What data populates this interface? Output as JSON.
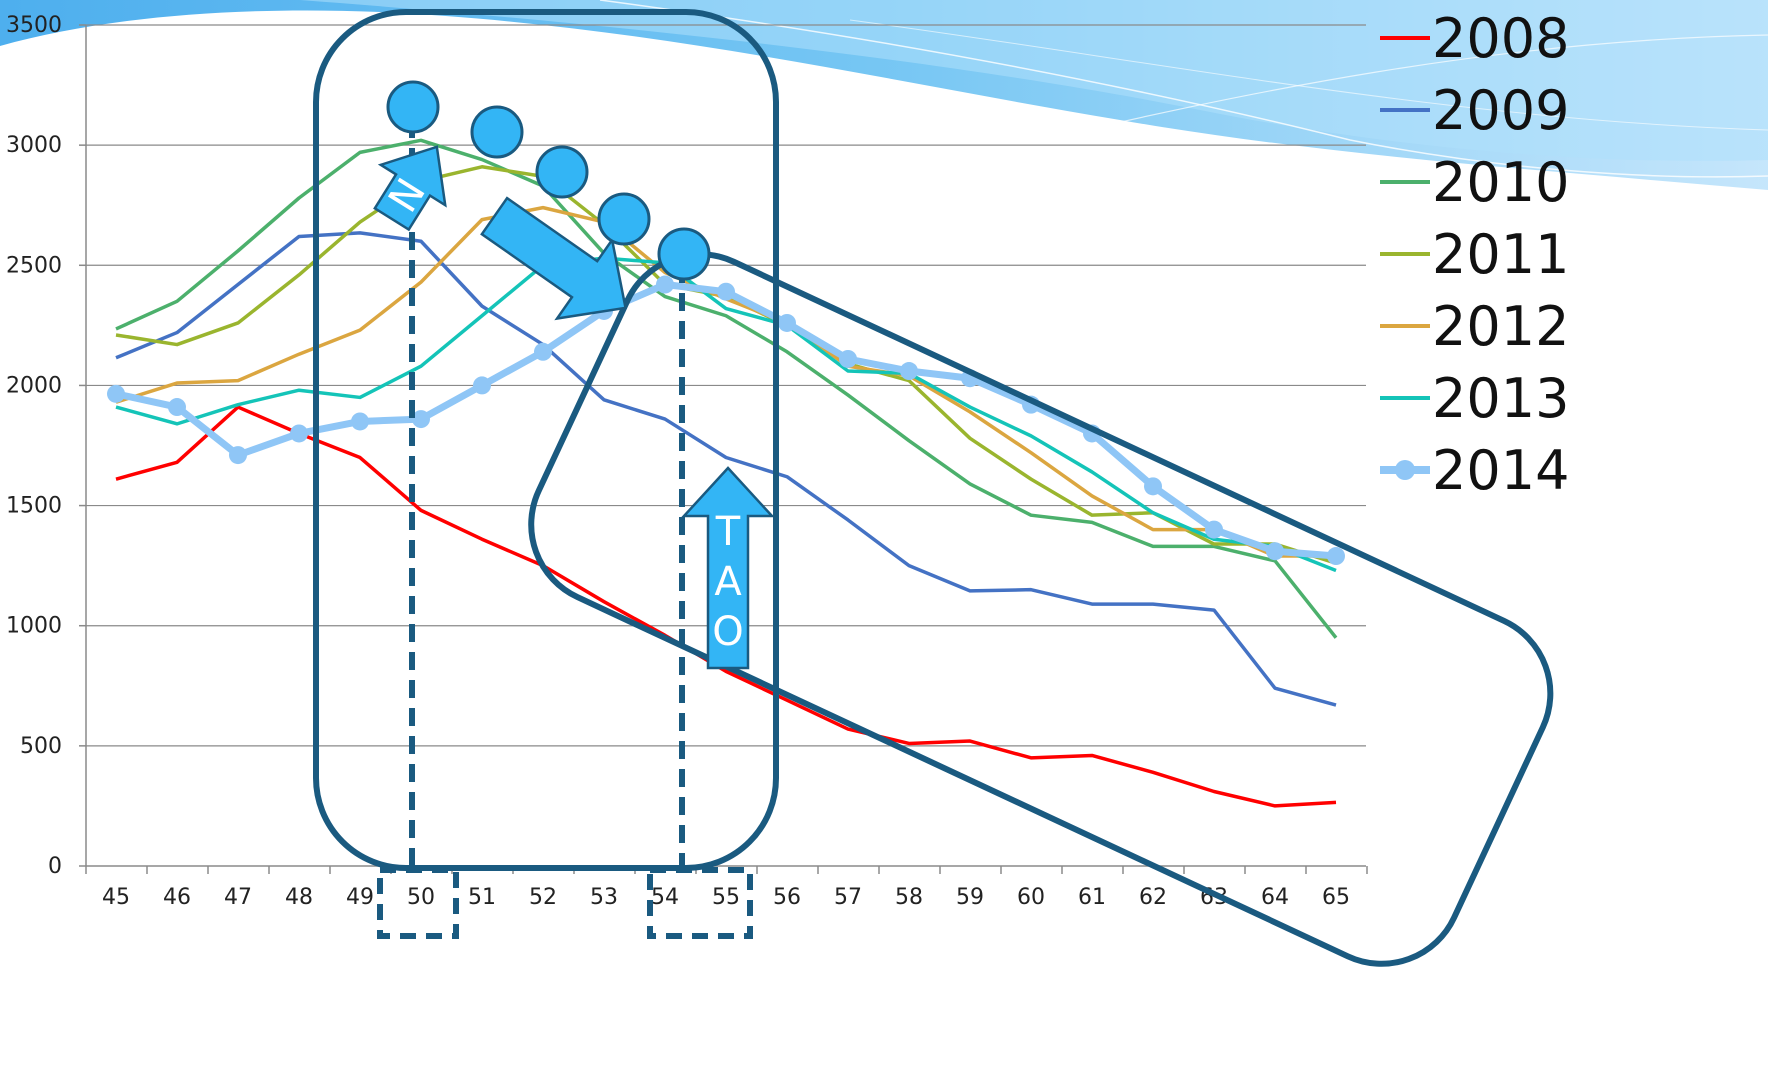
{
  "chart_data": {
    "type": "line",
    "x": [
      45,
      46,
      47,
      48,
      49,
      50,
      51,
      52,
      53,
      54,
      55,
      56,
      57,
      58,
      59,
      60,
      61,
      62,
      63,
      64,
      65
    ],
    "ylim": [
      0,
      3500
    ],
    "yticks": [
      0,
      500,
      1000,
      1500,
      2000,
      2500,
      3000,
      3500
    ],
    "xticks": [
      "45",
      "46",
      "47",
      "48",
      "49",
      "50",
      "51",
      "52",
      "53",
      "54",
      "55",
      "56",
      "57",
      "58",
      "59",
      "60",
      "61",
      "62",
      "63",
      "64",
      "65"
    ],
    "grid": true,
    "legend_position": "right",
    "series": [
      {
        "name": "2008",
        "color": "#ff0000",
        "markers": false,
        "values": [
          1610,
          1680,
          1910,
          1800,
          1700,
          1480,
          1360,
          1250,
          1100,
          960,
          810,
          690,
          570,
          510,
          520,
          450,
          460,
          390,
          310,
          250,
          265
        ]
      },
      {
        "name": "2009",
        "color": "#4472c4",
        "markers": false,
        "values": [
          2115,
          2220,
          2420,
          2620,
          2635,
          2600,
          2330,
          2170,
          1940,
          1860,
          1700,
          1620,
          1440,
          1250,
          1145,
          1150,
          1090,
          1090,
          1065,
          740,
          670
        ]
      },
      {
        "name": "2010",
        "color": "#4cb06c",
        "markers": false,
        "values": [
          2235,
          2350,
          2560,
          2780,
          2970,
          3020,
          2940,
          2830,
          2550,
          2370,
          2290,
          2140,
          1960,
          1770,
          1590,
          1460,
          1430,
          1330,
          1330,
          1270,
          950
        ]
      },
      {
        "name": "2011",
        "color": "#9ab52e",
        "markers": false,
        "values": [
          2210,
          2170,
          2260,
          2460,
          2680,
          2850,
          2910,
          2870,
          2670,
          2420,
          2370,
          2250,
          2090,
          2020,
          1780,
          1610,
          1460,
          1470,
          1340,
          1340,
          1260
        ]
      },
      {
        "name": "2012",
        "color": "#dba640",
        "markers": false,
        "values": [
          1930,
          2010,
          2020,
          2130,
          2230,
          2430,
          2690,
          2740,
          2680,
          2470,
          2360,
          2260,
          2080,
          2040,
          1890,
          1720,
          1540,
          1400,
          1400,
          1290,
          1290
        ]
      },
      {
        "name": "2013",
        "color": "#14c4b8",
        "markers": false,
        "values": [
          1910,
          1840,
          1920,
          1980,
          1950,
          2080,
          2290,
          2500,
          2530,
          2510,
          2320,
          2250,
          2060,
          2050,
          1910,
          1790,
          1640,
          1470,
          1360,
          1330,
          1230
        ]
      },
      {
        "name": "2014",
        "color": "#8fc6f6",
        "markers": true,
        "values": [
          1965,
          1910,
          1710,
          1800,
          1850,
          1860,
          2000,
          2140,
          2310,
          2420,
          2390,
          2260,
          2110,
          2060,
          2030,
          1920,
          1800,
          1580,
          1400,
          1310,
          1290
        ]
      }
    ]
  },
  "annotations": {
    "up_arrow_label": "N",
    "tao_arrow_label": "TAO",
    "tao_letters": [
      "T",
      "A",
      "O"
    ],
    "highlighted_x": [
      "50",
      "55"
    ]
  }
}
